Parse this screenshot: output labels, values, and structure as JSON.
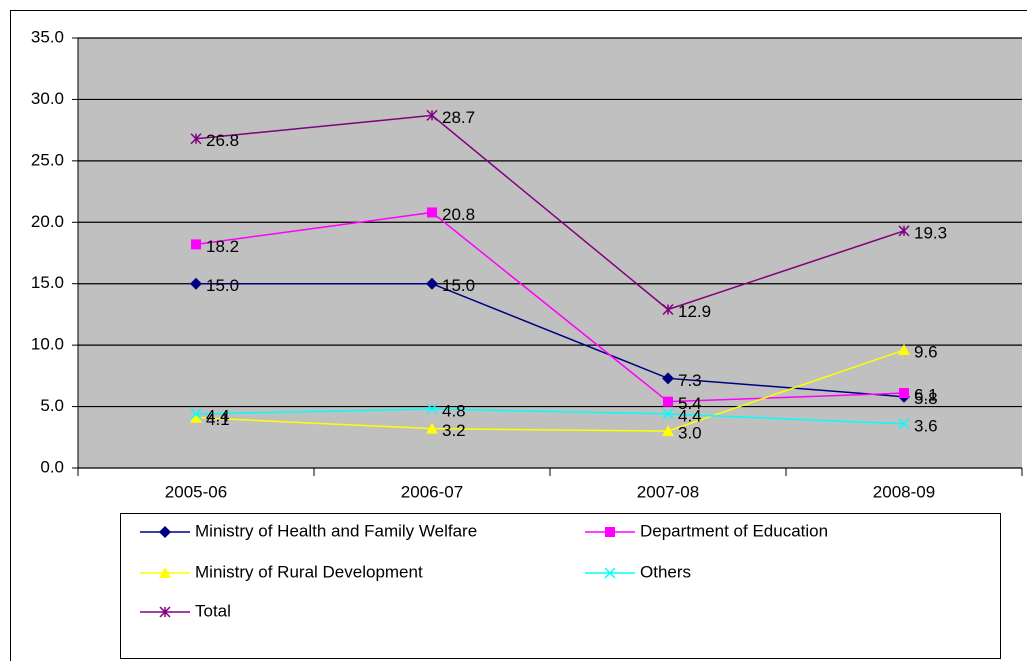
{
  "chart_data": {
    "type": "line",
    "categories": [
      "2005-06",
      "2006-07",
      "2007-08",
      "2008-09"
    ],
    "series": [
      {
        "name": "Ministry of Health and Family Welfare",
        "color": "#000080",
        "marker": "diamond",
        "values": [
          15.0,
          15.0,
          7.3,
          5.8
        ],
        "value_labels": [
          "15.0",
          "15.0",
          "7.3",
          "5.8"
        ]
      },
      {
        "name": "Department of  Education",
        "color": "#ff00ff",
        "marker": "square",
        "values": [
          18.2,
          20.8,
          5.4,
          6.1
        ],
        "value_labels": [
          "18.2",
          "20.8",
          "5.4",
          "6.1"
        ]
      },
      {
        "name": "Ministry of Rural Development",
        "color": "#ffff00",
        "marker": "triangle",
        "values": [
          4.1,
          3.2,
          3.0,
          9.6
        ],
        "value_labels": [
          "4.1",
          "3.2",
          "3.0",
          "9.6"
        ]
      },
      {
        "name": "Others",
        "color": "#00ffff",
        "marker": "x",
        "values": [
          4.4,
          4.8,
          4.4,
          3.6
        ],
        "value_labels": [
          "4.4",
          "4.8",
          "4.4",
          "3.6"
        ]
      },
      {
        "name": "Total",
        "color": "#800080",
        "marker": "star",
        "values": [
          26.8,
          28.7,
          12.9,
          19.3
        ],
        "value_labels": [
          "26.8",
          "28.7",
          "12.9",
          "19.3"
        ]
      }
    ],
    "ylim": [
      0,
      35
    ],
    "yticks": [
      {
        "value": 0,
        "label": "0.0"
      },
      {
        "value": 5,
        "label": "5.0"
      },
      {
        "value": 10,
        "label": "10.0"
      },
      {
        "value": 15,
        "label": "15.0"
      },
      {
        "value": 20,
        "label": "20.0"
      },
      {
        "value": 25,
        "label": "25.0"
      },
      {
        "value": 30,
        "label": "30.0"
      },
      {
        "value": 35,
        "label": "35.0"
      }
    ],
    "grid": true
  }
}
